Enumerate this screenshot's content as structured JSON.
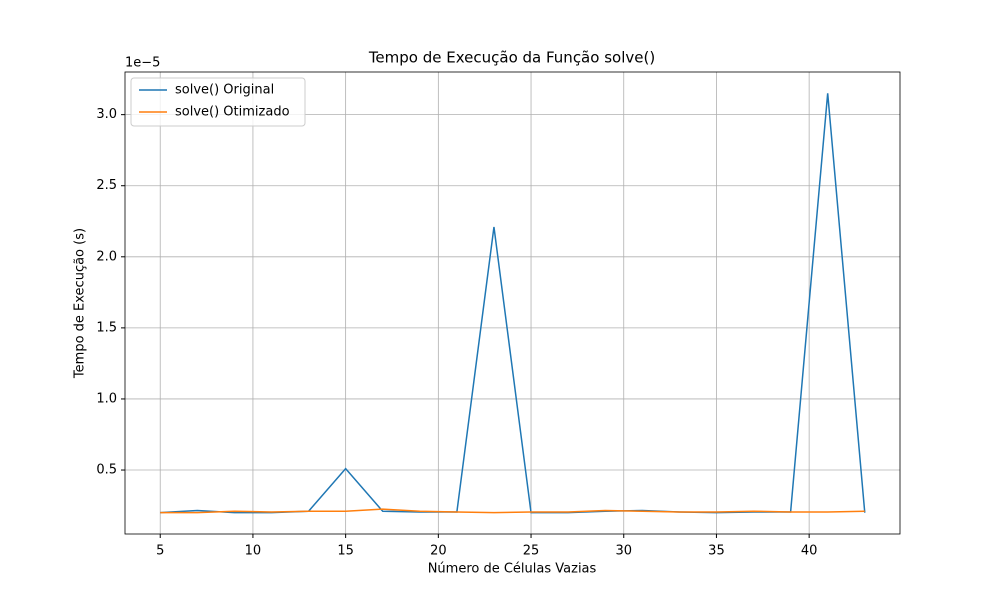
{
  "chart_data": {
    "type": "line",
    "title": "Tempo de Execução da Função solve()",
    "xlabel": "Número de Células Vazias",
    "ylabel": "Tempo de Execução (s)",
    "y_offset_label": "1e−5",
    "x": [
      5,
      7,
      9,
      11,
      13,
      15,
      17,
      19,
      21,
      23,
      25,
      27,
      29,
      31,
      33,
      35,
      37,
      39,
      41,
      43
    ],
    "series": [
      {
        "name": "solve() Original",
        "color": "#1f77b4",
        "values": [
          0.2,
          0.215,
          0.2,
          0.2,
          0.21,
          0.51,
          0.21,
          0.205,
          0.205,
          2.21,
          0.2,
          0.2,
          0.21,
          0.215,
          0.205,
          0.2,
          0.205,
          0.205,
          3.15,
          0.2
        ]
      },
      {
        "name": "solve() Otimizado",
        "color": "#ff7f0e",
        "values": [
          0.2,
          0.2,
          0.21,
          0.205,
          0.21,
          0.21,
          0.225,
          0.21,
          0.205,
          0.2,
          0.205,
          0.205,
          0.215,
          0.21,
          0.205,
          0.205,
          0.21,
          0.205,
          0.205,
          0.21
        ]
      }
    ],
    "xlim": [
      3.1,
      44.9
    ],
    "ylim": [
      0.05,
      3.3
    ],
    "xticks": [
      5,
      10,
      15,
      20,
      25,
      30,
      35,
      40
    ],
    "yticks": [
      0.5,
      {
        "value": 1,
        "label": "1.0"
      },
      1.5,
      {
        "value": 2,
        "label": "2.0"
      },
      2.5,
      {
        "value": 3,
        "label": "3.0"
      }
    ],
    "grid": true,
    "legend": "upper-left"
  }
}
